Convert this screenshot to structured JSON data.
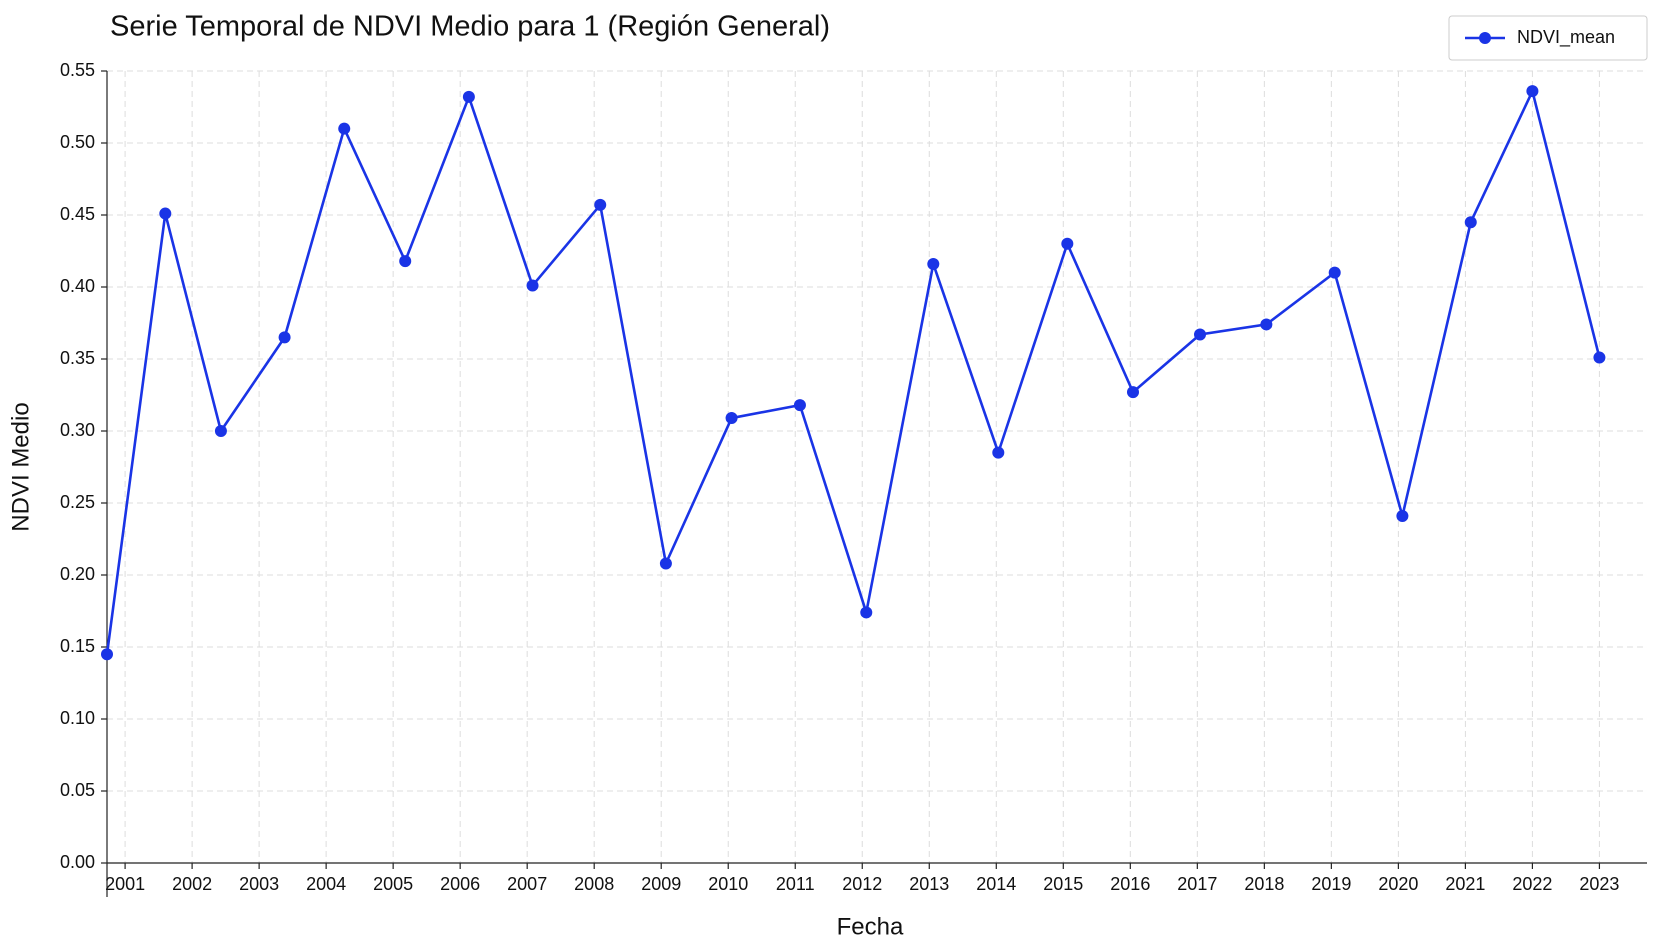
{
  "chart_data": {
    "type": "line",
    "title": "Serie Temporal de NDVI Medio para 1 (Región General)",
    "xlabel": "Fecha",
    "ylabel": "NDVI Medio",
    "x": [
      2000.73,
      2001.6,
      2002.43,
      2003.38,
      2004.27,
      2005.18,
      2006.13,
      2007.08,
      2008.09,
      2009.07,
      2010.05,
      2011.07,
      2012.06,
      2013.06,
      2014.03,
      2015.06,
      2016.04,
      2017.04,
      2018.03,
      2019.05,
      2020.06,
      2021.08,
      2022.0,
      2023.0
    ],
    "series": [
      {
        "name": "NDVI_mean",
        "color": "#1a34e6",
        "values": [
          0.145,
          0.451,
          0.3,
          0.365,
          0.51,
          0.418,
          0.532,
          0.401,
          0.457,
          0.208,
          0.309,
          0.318,
          0.174,
          0.416,
          0.285,
          0.43,
          0.327,
          0.367,
          0.374,
          0.41,
          0.241,
          0.445,
          0.536,
          0.351
        ]
      }
    ],
    "xlim": [
      2000.73,
      2023.71
    ],
    "xticks": [
      2001,
      2002,
      2003,
      2004,
      2005,
      2006,
      2007,
      2008,
      2009,
      2010,
      2011,
      2012,
      2013,
      2014,
      2015,
      2016,
      2017,
      2018,
      2019,
      2020,
      2021,
      2022,
      2023
    ],
    "ylim": [
      0,
      0.55
    ],
    "yticks": [
      {
        "value": 0,
        "label": "0.00"
      },
      {
        "value": 0.05,
        "label": "0.05"
      },
      {
        "value": 0.1,
        "label": "0.10"
      },
      {
        "value": 0.15,
        "label": "0.15"
      },
      {
        "value": 0.2,
        "label": "0.20"
      },
      {
        "value": 0.25,
        "label": "0.25"
      },
      {
        "value": 0.3,
        "label": "0.30"
      },
      {
        "value": 0.35,
        "label": "0.35"
      },
      {
        "value": 0.4,
        "label": "0.40"
      },
      {
        "value": 0.45,
        "label": "0.45"
      },
      {
        "value": 0.5,
        "label": "0.50"
      },
      {
        "value": 0.55,
        "label": "0.55"
      }
    ],
    "grid": true,
    "legend": "upper right"
  }
}
